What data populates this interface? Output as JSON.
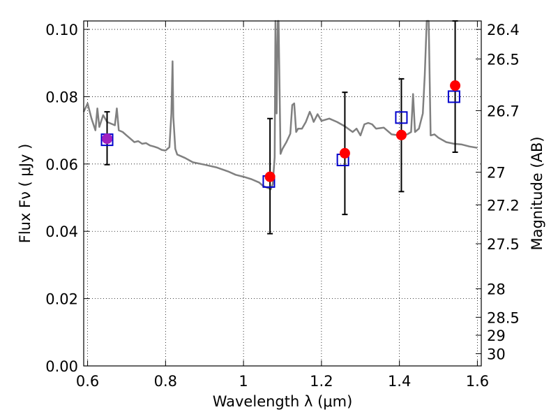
{
  "chart_data": {
    "type": "scatter",
    "xlabel": "Wavelength  λ (μm)",
    "ylabel": "Flux  Fν  ( μJy )",
    "y2label": "Magnitude (AB)",
    "xlim": [
      0.59,
      1.61
    ],
    "ylim": [
      0.0,
      0.1025
    ],
    "x_ticks": [
      0.6,
      0.8,
      1.0,
      1.2,
      1.4,
      1.6
    ],
    "x_tick_labels": [
      "0.6",
      "0.8",
      "1",
      "1.2",
      "1.4",
      "1.6"
    ],
    "y_ticks": [
      0.0,
      0.02,
      0.04,
      0.06,
      0.08,
      0.1
    ],
    "y_tick_labels": [
      "0.00",
      "0.02",
      "0.04",
      "0.06",
      "0.08",
      "0.10"
    ],
    "y2_ticks": [
      26.4,
      26.5,
      26.7,
      27,
      27.2,
      27.5,
      28,
      28.5,
      29,
      30
    ],
    "y2_tick_labels": [
      "26.4",
      "26.5",
      "26.7",
      "27",
      "27.2",
      "27.5",
      "28",
      "28.5",
      "29",
      "30"
    ],
    "grid": true,
    "colors": {
      "spectrum": "#808080",
      "observed": "#ff0000",
      "first_point": "#a020c0",
      "model": "#0000cc",
      "errorbar": "#000000"
    },
    "series": [
      {
        "type": "line",
        "x": [
          0.59,
          0.6,
          0.61,
          0.62,
          0.625,
          0.63,
          0.64,
          0.65,
          0.66,
          0.67,
          0.675,
          0.68,
          0.69,
          0.7,
          0.71,
          0.72,
          0.73,
          0.74,
          0.75,
          0.76,
          0.77,
          0.78,
          0.79,
          0.8,
          0.81,
          0.815,
          0.818,
          0.82,
          0.825,
          0.83,
          0.85,
          0.87,
          0.9,
          0.93,
          0.96,
          0.98,
          1.0,
          1.02,
          1.04,
          1.05,
          1.06,
          1.07,
          1.075,
          1.08,
          1.082,
          1.085,
          1.088,
          1.09,
          1.095,
          1.1,
          1.11,
          1.12,
          1.125,
          1.13,
          1.135,
          1.14,
          1.15,
          1.16,
          1.17,
          1.175,
          1.18,
          1.19,
          1.2,
          1.22,
          1.24,
          1.26,
          1.28,
          1.29,
          1.3,
          1.31,
          1.32,
          1.33,
          1.34,
          1.36,
          1.38,
          1.4,
          1.42,
          1.43,
          1.435,
          1.44,
          1.45,
          1.46,
          1.465,
          1.47,
          1.475,
          1.48,
          1.49,
          1.5,
          1.52,
          1.54,
          1.56,
          1.58,
          1.6
        ],
        "y": [
          0.0755,
          0.078,
          0.0735,
          0.07,
          0.0765,
          0.071,
          0.0745,
          0.0725,
          0.072,
          0.0715,
          0.0765,
          0.07,
          0.0695,
          0.0685,
          0.0675,
          0.0665,
          0.0668,
          0.066,
          0.0662,
          0.0655,
          0.0652,
          0.0648,
          0.0642,
          0.064,
          0.065,
          0.075,
          0.0905,
          0.074,
          0.0645,
          0.0628,
          0.0618,
          0.0605,
          0.0598,
          0.059,
          0.0578,
          0.0568,
          0.0562,
          0.0555,
          0.0545,
          0.0535,
          0.053,
          0.0525,
          0.054,
          0.062,
          0.105,
          0.075,
          0.105,
          0.105,
          0.063,
          0.0645,
          0.0665,
          0.069,
          0.0775,
          0.078,
          0.0695,
          0.0705,
          0.0705,
          0.0725,
          0.0755,
          0.0742,
          0.0725,
          0.0748,
          0.0728,
          0.0735,
          0.0725,
          0.0712,
          0.0695,
          0.0705,
          0.0685,
          0.0718,
          0.0722,
          0.0718,
          0.0705,
          0.0708,
          0.0688,
          0.0685,
          0.0688,
          0.0695,
          0.0808,
          0.0695,
          0.0705,
          0.075,
          0.0865,
          0.105,
          0.105,
          0.0685,
          0.0688,
          0.0678,
          0.0665,
          0.066,
          0.0658,
          0.0652,
          0.0648
        ]
      },
      {
        "type": "scatter",
        "marker": "square",
        "x": [
          0.65,
          1.065,
          1.255,
          1.405,
          1.54
        ],
        "y": [
          0.0672,
          0.0548,
          0.0612,
          0.0738,
          0.08
        ]
      },
      {
        "type": "errorbar",
        "marker": "circle",
        "x": [
          0.65,
          1.068,
          1.26,
          1.405,
          1.543
        ],
        "y": [
          0.0675,
          0.0562,
          0.0632,
          0.0686,
          0.0833
        ],
        "yerr_low": [
          0.0598,
          0.0393,
          0.045,
          0.0518,
          0.0635
        ],
        "yerr_high": [
          0.0755,
          0.0735,
          0.0813,
          0.0853,
          0.103
        ]
      }
    ]
  }
}
